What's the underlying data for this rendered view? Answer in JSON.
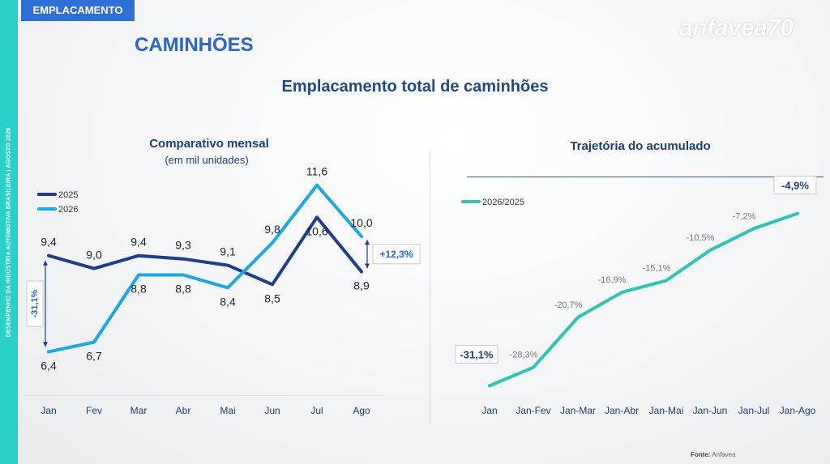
{
  "header": {
    "tag": "EMPLACAMENTO",
    "title": "CAMINHÕES",
    "logo": "anfavea70",
    "subtitle": "Emplacamento total de caminhões",
    "side_text": "DESEMPENHO DA INDÚSTRIA AUTOMOTIVA BRASILEIRA | AGOSTO 2026",
    "source_label": "Fonte:",
    "source_value": "Anfavea"
  },
  "colors": {
    "series_2025": "#1f3d8c",
    "series_2026": "#1aa9e6",
    "accumulated": "#2bc7b4",
    "accent": "#2a63d4"
  },
  "chart_data": [
    {
      "type": "line",
      "title": "Comparativo mensal",
      "subtitle": "(em mil unidades)",
      "categories": [
        "Jan",
        "Fev",
        "Mar",
        "Abr",
        "Mai",
        "Jun",
        "Jul",
        "Ago"
      ],
      "series": [
        {
          "name": "2025",
          "values": [
            9.4,
            9.0,
            9.4,
            9.3,
            9.1,
            8.5,
            10.6,
            8.9
          ],
          "labels": [
            "9,4",
            "9,0",
            "9,4",
            "9,3",
            "9,1",
            "8,5",
            "10,6",
            "8,9"
          ]
        },
        {
          "name": "2026",
          "values": [
            6.4,
            6.7,
            8.8,
            8.8,
            8.4,
            9.8,
            11.6,
            10.0
          ],
          "labels": [
            "6,4",
            "6,7",
            "8,8",
            "8,8",
            "8,4",
            "9,8",
            "11,6",
            "10,0"
          ]
        }
      ],
      "ylim": [
        5.5,
        12.2
      ],
      "legend": "top-left",
      "grid": false,
      "annotations": [
        {
          "text": "-31,1%",
          "between": "Jan"
        },
        {
          "text": "+12,3%",
          "between": "Ago"
        }
      ]
    },
    {
      "type": "line",
      "title": "Trajetória do acumulado",
      "categories": [
        "Jan",
        "Jan-Fev",
        "Jan-Mar",
        "Jan-Abr",
        "Jan-Mai",
        "Jan-Jun",
        "Jan-Jul",
        "Jan-Ago"
      ],
      "series": [
        {
          "name": "2026/2025",
          "values": [
            -31.1,
            -28.3,
            -20.7,
            -16.9,
            -15.1,
            -10.5,
            -7.2,
            -4.9
          ],
          "labels": [
            "-31,1%",
            "-28,3%",
            "-20,7%",
            "-16,9%",
            "-15,1%",
            "-10,5%",
            "-7,2%",
            "-4,9%"
          ]
        }
      ],
      "ylim": [
        -34,
        -2
      ],
      "legend": "top-left",
      "grid": false
    }
  ]
}
